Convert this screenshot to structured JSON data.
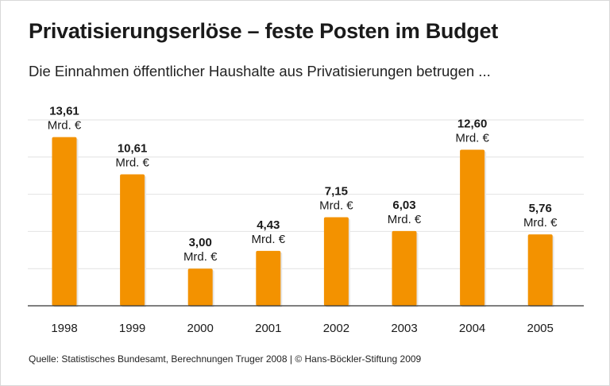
{
  "chart_data": {
    "type": "bar",
    "title": "Privatisierungserlöse – feste Posten im Budget",
    "subtitle": "Die Einnahmen öffentlicher Haushalte aus Privatisierungen betrugen ...",
    "categories": [
      "1998",
      "1999",
      "2000",
      "2001",
      "2002",
      "2003",
      "2004",
      "2005"
    ],
    "values": [
      13.61,
      10.61,
      3.0,
      4.43,
      7.15,
      6.03,
      12.6,
      5.76
    ],
    "value_labels": [
      "13,61",
      "10,61",
      "3,00",
      "4,43",
      "7,15",
      "6,03",
      "12,60",
      "5,76"
    ],
    "unit_label": "Mrd. €",
    "ylim": [
      0,
      15
    ],
    "grid": true,
    "bar_color": "#f39200",
    "source": "Quelle: Statistisches Bundesamt, Berechnungen Truger 2008 | © Hans-Böckler-Stiftung 2009"
  }
}
